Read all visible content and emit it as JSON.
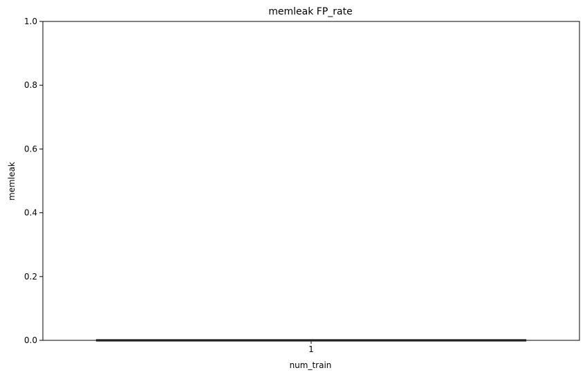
{
  "chart_data": {
    "type": "box",
    "title": "memleak FP_rate",
    "xlabel": "num_train",
    "ylabel": "memleak",
    "categories": [
      "1"
    ],
    "series": [
      {
        "values": [
          {
            "category": "1",
            "min": 0.0,
            "q1": 0.0,
            "median": 0.0,
            "q3": 0.0,
            "max": 0.0
          }
        ]
      }
    ],
    "ylim": [
      0.0,
      1.0
    ],
    "yticks": [
      "0.0",
      "0.2",
      "0.4",
      "0.6",
      "0.8",
      "1.0"
    ],
    "grid": false,
    "legend": "none",
    "colors": {
      "axis": "#000000",
      "box": "#3f3f3f"
    }
  }
}
